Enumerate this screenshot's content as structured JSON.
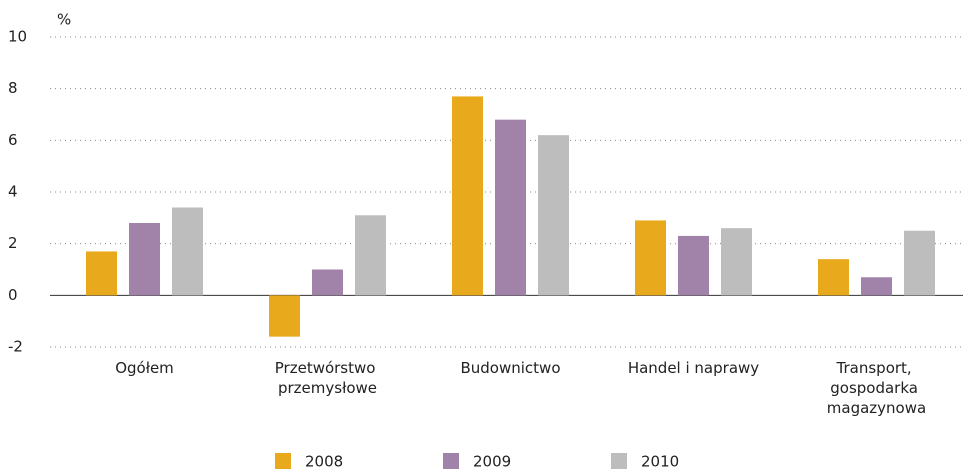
{
  "chart_data": {
    "type": "bar",
    "y_label": "%",
    "categories": [
      "Ogółem",
      "Przetwórstwo przemysłowe",
      "Budownictwo",
      "Handel i naprawy",
      "Transport, gospodarka magazynowa"
    ],
    "series": [
      {
        "name": "2008",
        "color": "#e8a91c",
        "values": [
          1.7,
          -1.6,
          7.7,
          2.9,
          1.4
        ]
      },
      {
        "name": "2009",
        "color": "#a182a8",
        "values": [
          2.8,
          1.0,
          6.8,
          2.3,
          0.7
        ]
      },
      {
        "name": "2010",
        "color": "#bdbdbd",
        "values": [
          3.4,
          3.1,
          6.2,
          2.6,
          2.5
        ]
      }
    ],
    "ylim": [
      -2,
      10
    ],
    "yticks": [
      -2,
      0,
      2,
      4,
      6,
      8,
      10
    ],
    "grid": true,
    "legend": "bottom"
  }
}
